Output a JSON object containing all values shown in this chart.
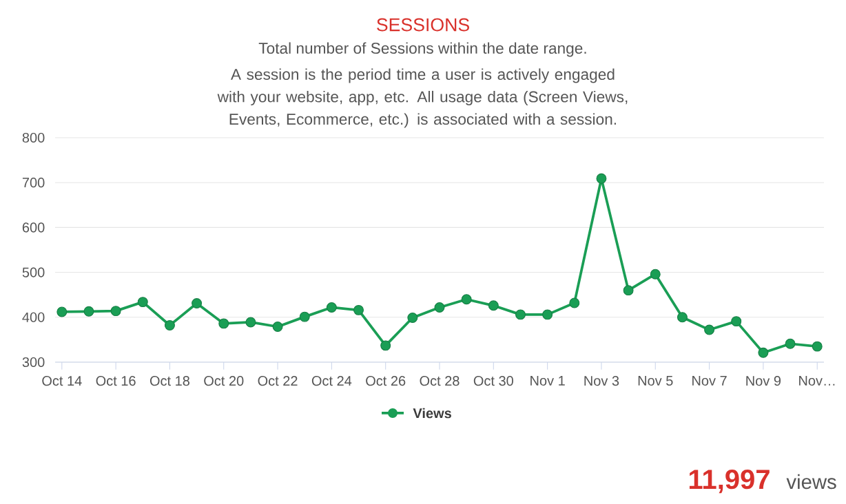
{
  "chart_data": {
    "type": "line",
    "title": "SESSIONS",
    "subtitle": "Total number of Sessions within the date range.",
    "annotations": [
      "A session is the period time a user is actively engaged with your website, app, etc. All usage data (Screen Views, Events, Ecommerce, etc.) is associated with a session.",
      "11,997",
      "views"
    ],
    "categories": [
      "Oct 14",
      null,
      "Oct 16",
      null,
      "Oct 18",
      null,
      "Oct 20",
      null,
      "Oct 22",
      null,
      "Oct 24",
      null,
      "Oct 26",
      null,
      "Oct 28",
      null,
      "Oct 30",
      null,
      "Nov 1",
      null,
      "Nov 3",
      null,
      "Nov 5",
      null,
      "Nov 7",
      null,
      "Nov 9",
      null,
      "Nov…"
    ],
    "series": [
      {
        "name": "Views",
        "color": "#1a9e55",
        "values": [
          412,
          413,
          414,
          434,
          382,
          431,
          386,
          389,
          379,
          401,
          422,
          416,
          337,
          399,
          422,
          440,
          426,
          406,
          406,
          432,
          709,
          460,
          496,
          400,
          372,
          391,
          321,
          341,
          335
        ]
      }
    ],
    "ylim": [
      300,
      800
    ],
    "yticks": [
      300,
      400,
      500,
      600,
      700,
      800
    ],
    "grid": "y",
    "legend": "bottom",
    "marker": "circle",
    "line_style": "solid"
  }
}
